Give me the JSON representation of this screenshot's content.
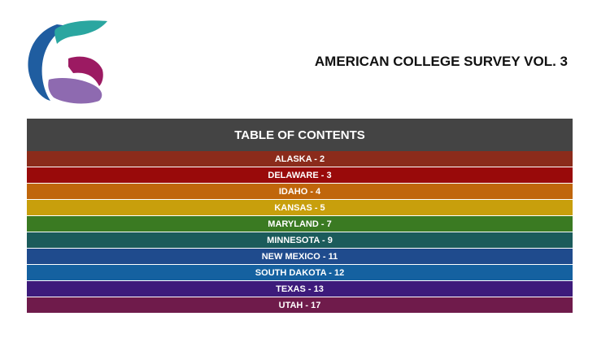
{
  "header": {
    "title": "AMERICAN COLLEGE SURVEY VOL. 3"
  },
  "toc": {
    "title": "TABLE OF CONTENTS",
    "entries": [
      {
        "label": "ALASKA - 2",
        "color": "#8b2b1b"
      },
      {
        "label": "DELAWARE - 3",
        "color": "#990a0a"
      },
      {
        "label": "IDAHO - 4",
        "color": "#c0660b"
      },
      {
        "label": "KANSAS - 5",
        "color": "#c89f0c"
      },
      {
        "label": "MARYLAND - 7",
        "color": "#3a7a22"
      },
      {
        "label": "MINNESOTA - 9",
        "color": "#1b5b5b"
      },
      {
        "label": "NEW MEXICO - 11",
        "color": "#1f4b8d"
      },
      {
        "label": "SOUTH DAKOTA - 12",
        "color": "#1561a0"
      },
      {
        "label": "TEXAS - 13",
        "color": "#3d1b7b"
      },
      {
        "label": "UTAH - 17",
        "color": "#6f1b4b"
      }
    ]
  }
}
